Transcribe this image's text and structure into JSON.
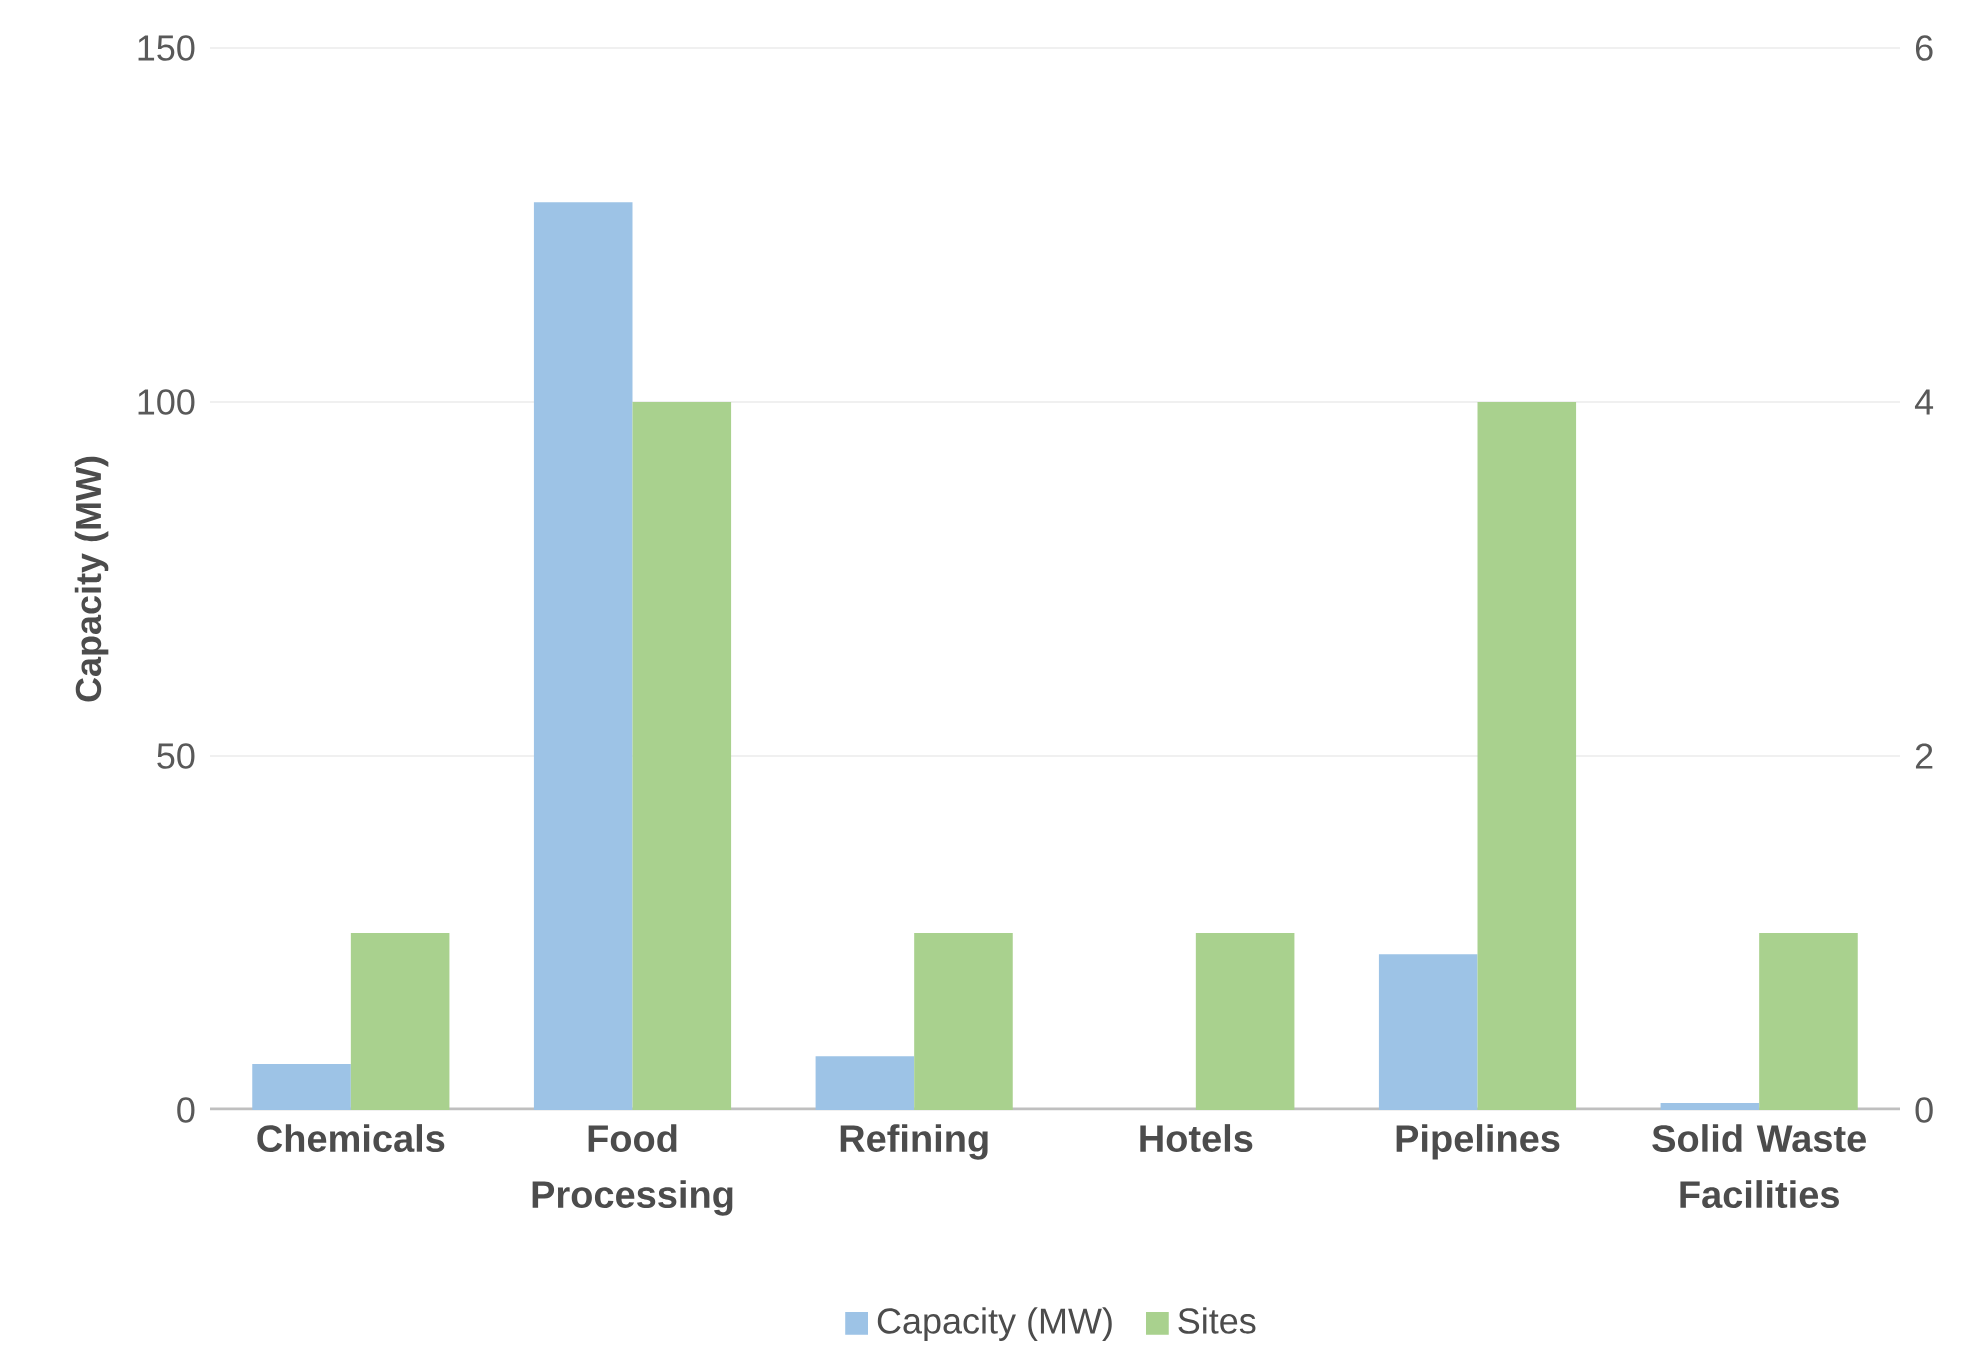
{
  "chart_data": {
    "type": "bar",
    "ylabel": "Capacity (MW)",
    "categories": [
      "Chemicals",
      "Food Processing",
      "Refining",
      "Hotels",
      "Pipelines",
      "Solid Waste Facilities"
    ],
    "series": [
      {
        "name": "Capacity (MW)",
        "color": "#9dc3e6",
        "values": [
          6.5,
          128.2,
          7.6,
          0,
          22,
          1
        ]
      },
      {
        "name": "Sites",
        "color": "#a9d18e",
        "values": [
          1,
          4,
          1,
          1,
          4,
          1
        ],
        "axis": "y2"
      }
    ],
    "ylim": [
      0,
      150
    ],
    "yticks": [
      0,
      50,
      100,
      150
    ],
    "y2lim": [
      0,
      6
    ],
    "y2ticks": [
      0,
      2,
      4,
      6
    ],
    "grid": "y",
    "legend": "bottom"
  }
}
